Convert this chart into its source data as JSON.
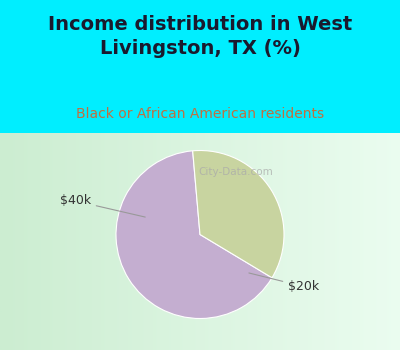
{
  "title": "Income distribution in West\nLivingston, TX (%)",
  "subtitle": "Black or African American residents",
  "slices": [
    65,
    35
  ],
  "labels": [
    "$20k",
    "$40k"
  ],
  "colors": [
    "#c4aed0",
    "#c8d4a0"
  ],
  "title_color": "#1a1a2e",
  "subtitle_color": "#c07040",
  "bg_color_top": "#00eeff",
  "title_fontsize": 14,
  "subtitle_fontsize": 10,
  "label_fontsize": 9,
  "startangle": 95,
  "watermark": "City-Data.com",
  "watermark_color": "#aaaaaa",
  "chart_bg_left": "#d4edd4",
  "chart_bg_right": "#f0fff0"
}
